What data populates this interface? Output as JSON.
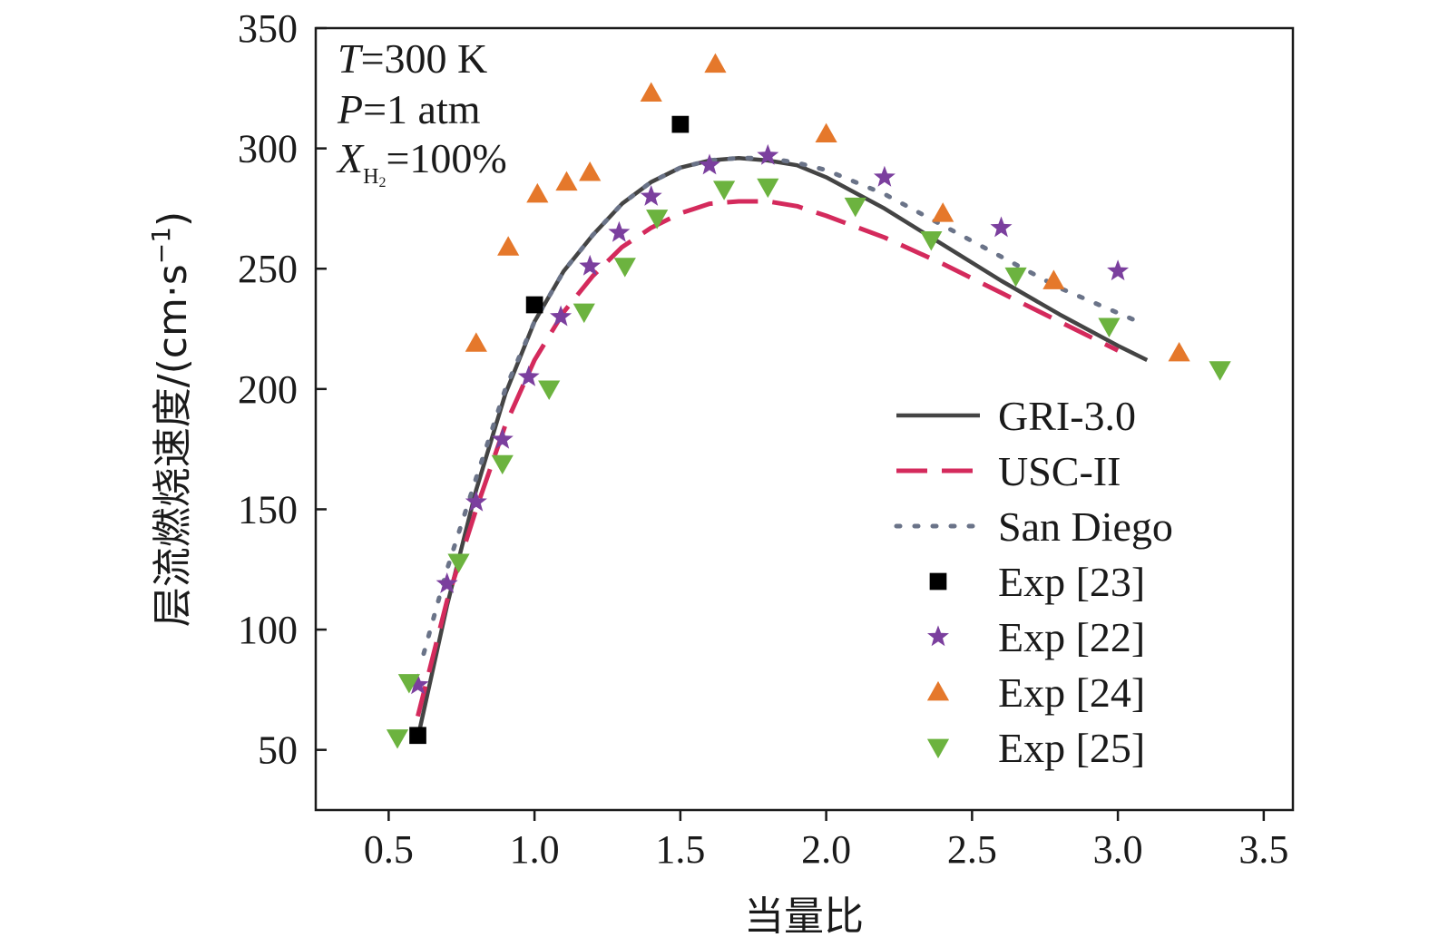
{
  "chart_data": {
    "type": "line",
    "xlabel": "当量比",
    "ylabel": "层流燃烧速度/(cm·s",
    "ylabel_sup": "−1",
    "ylabel_close": ")",
    "xlim": [
      0.25,
      3.6
    ],
    "ylim": [
      25,
      350
    ],
    "xticks": [
      0.5,
      1.0,
      1.5,
      2.0,
      2.5,
      3.0,
      3.5
    ],
    "xtick_labels": [
      "0.5",
      "1.0",
      "1.5",
      "2.0",
      "2.5",
      "3.0",
      "3.5"
    ],
    "yticks": [
      50,
      100,
      150,
      200,
      250,
      300,
      350
    ],
    "ytick_labels": [
      "50",
      "100",
      "150",
      "200",
      "250",
      "300",
      "350"
    ],
    "annotations": {
      "T_sym": "T",
      "T_val": "=300 K",
      "P_sym": "P",
      "P_val": "=1 atm",
      "X_sym": "X",
      "X_sub": "H",
      "X_sub2": "2",
      "X_val": "=100%"
    },
    "legend_position": "bottom-right",
    "series": [
      {
        "name": "GRI-3.0",
        "kind": "line",
        "style": "solid",
        "color": "#444444",
        "x": [
          0.6,
          0.7,
          0.8,
          0.9,
          1.0,
          1.1,
          1.2,
          1.3,
          1.4,
          1.5,
          1.6,
          1.7,
          1.8,
          1.9,
          2.0,
          2.2,
          2.4,
          2.6,
          2.8,
          3.0,
          3.1
        ],
        "y": [
          55,
          110,
          158,
          198,
          228,
          249,
          264,
          277,
          286,
          292,
          295,
          296,
          295,
          293,
          288,
          275,
          260,
          245,
          231,
          218,
          212
        ]
      },
      {
        "name": "USC-II",
        "kind": "line",
        "style": "dashed",
        "color": "#d42a5c",
        "x": [
          0.6,
          0.7,
          0.8,
          0.9,
          1.0,
          1.1,
          1.2,
          1.3,
          1.4,
          1.5,
          1.6,
          1.7,
          1.8,
          1.9,
          2.0,
          2.2,
          2.4,
          2.6,
          2.8,
          3.0
        ],
        "y": [
          64,
          112,
          150,
          185,
          212,
          232,
          247,
          259,
          267,
          273,
          277,
          278,
          278,
          276,
          272,
          263,
          252,
          240,
          228,
          216
        ]
      },
      {
        "name": "San Diego",
        "kind": "line",
        "style": "dotted",
        "color": "#6a7388",
        "x": [
          0.62,
          0.7,
          0.8,
          0.9,
          1.0,
          1.1,
          1.2,
          1.3,
          1.4,
          1.5,
          1.6,
          1.7,
          1.8,
          1.9,
          2.0,
          2.2,
          2.4,
          2.6,
          2.8,
          3.05
        ],
        "y": [
          90,
          125,
          163,
          200,
          228,
          249,
          264,
          277,
          286,
          292,
          295,
          296,
          296,
          294,
          291,
          281,
          268,
          255,
          242,
          229
        ]
      },
      {
        "name": "Exp [23]",
        "kind": "scatter",
        "marker": "square",
        "color": "#000000",
        "x": [
          0.6,
          1.0,
          1.5
        ],
        "y": [
          56,
          235,
          310
        ]
      },
      {
        "name": "Exp [22]",
        "kind": "scatter",
        "marker": "star",
        "color": "#7b3f9e",
        "x": [
          0.6,
          0.7,
          0.8,
          0.89,
          0.98,
          1.09,
          1.19,
          1.29,
          1.4,
          1.6,
          1.8,
          2.2,
          2.6,
          3.0
        ],
        "y": [
          77,
          119,
          153,
          179,
          205,
          230,
          251,
          265,
          280,
          293,
          297,
          288,
          267,
          249
        ]
      },
      {
        "name": "Exp [24]",
        "kind": "scatter",
        "marker": "triangle-up",
        "color": "#e5782b",
        "x": [
          0.8,
          0.91,
          1.01,
          1.11,
          1.19,
          1.4,
          1.62,
          2.0,
          2.4,
          2.78,
          3.21
        ],
        "y": [
          219,
          259,
          281,
          286,
          290,
          323,
          335,
          306,
          273,
          245,
          215
        ]
      },
      {
        "name": "Exp [25]",
        "kind": "scatter",
        "marker": "triangle-down",
        "color": "#6cb33f",
        "x": [
          0.53,
          0.57,
          0.74,
          0.89,
          1.05,
          1.17,
          1.31,
          1.42,
          1.65,
          1.8,
          2.1,
          2.36,
          2.65,
          2.97,
          3.35
        ],
        "y": [
          55,
          78,
          128,
          169,
          200,
          232,
          251,
          271,
          283,
          284,
          276,
          262,
          247,
          226,
          208
        ]
      }
    ]
  }
}
